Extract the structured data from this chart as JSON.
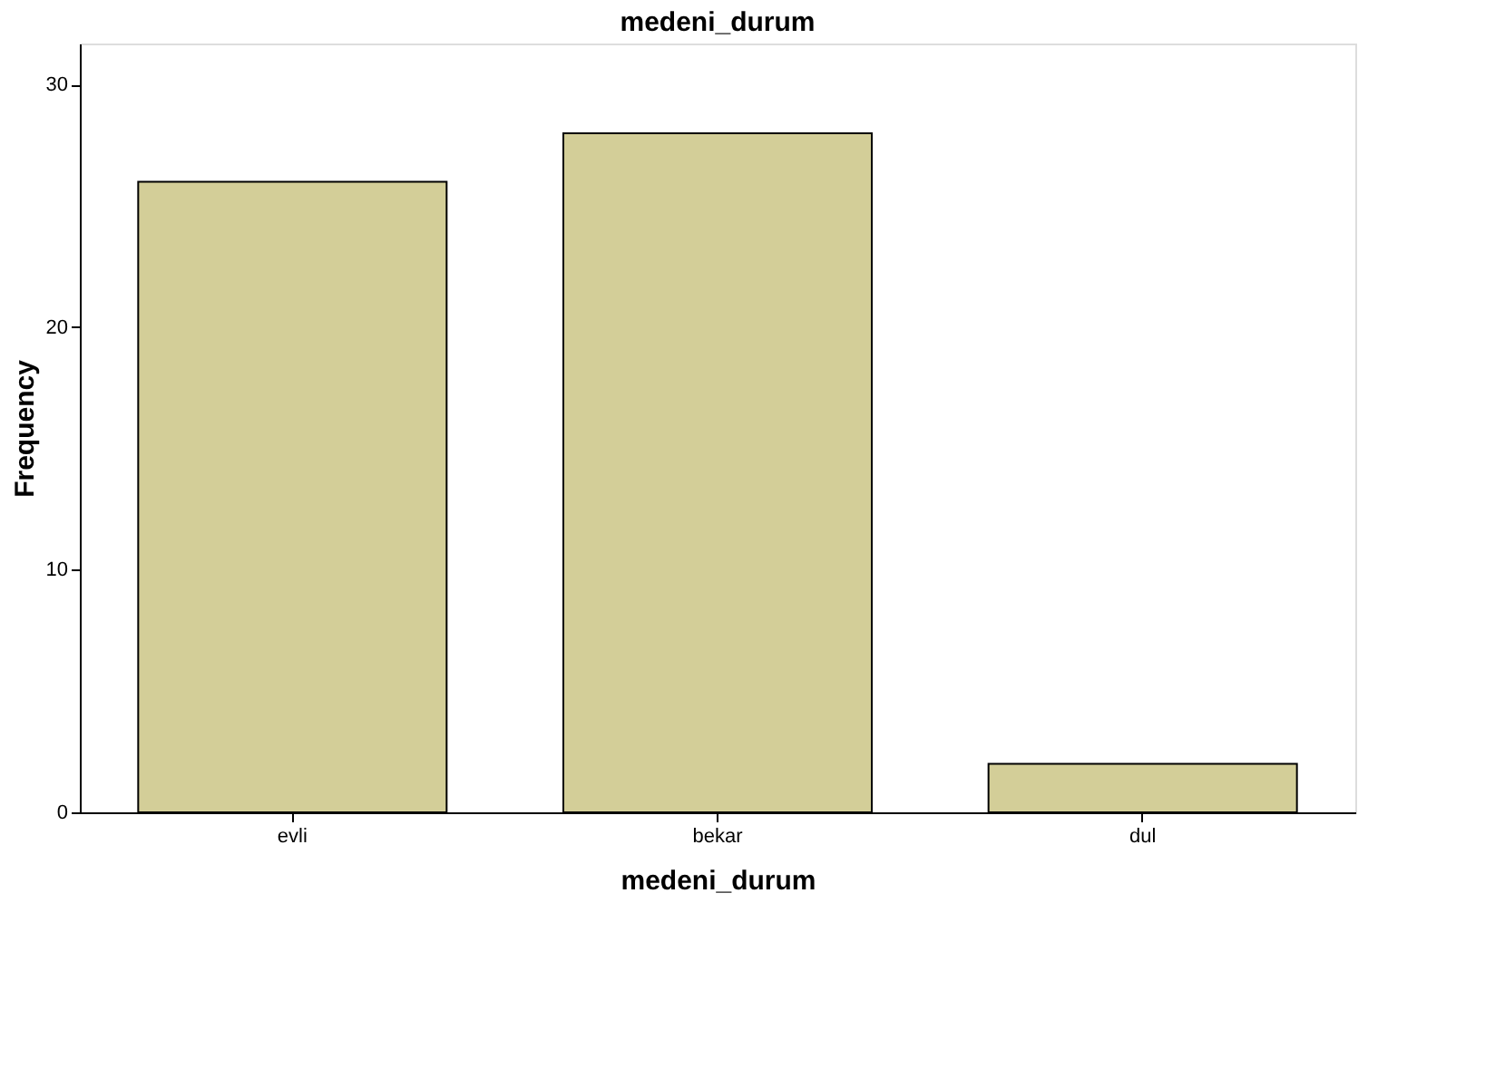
{
  "chart_data": {
    "type": "bar",
    "title": "medeni_durum",
    "xlabel": "medeni_durum",
    "ylabel": "Frequency",
    "categories": [
      "evli",
      "bekar",
      "dul"
    ],
    "values": [
      26,
      28,
      2
    ],
    "color": "#d3ce98",
    "ylim": [
      0,
      31.7
    ],
    "yticks": [
      0,
      10,
      20,
      30
    ],
    "grid": false
  }
}
